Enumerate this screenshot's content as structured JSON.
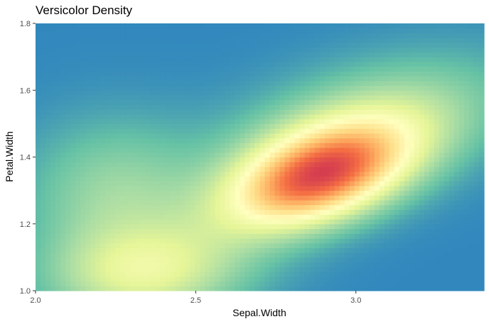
{
  "chart_data": {
    "type": "heatmap",
    "title": "Versicolor Density",
    "xlabel": "Sepal.Width",
    "ylabel": "Petal.Width",
    "xlim": [
      2.0,
      3.4
    ],
    "ylim": [
      1.0,
      1.8
    ],
    "x_ticks": [
      2.0,
      2.5,
      3.0
    ],
    "x_tick_labels": [
      "2.0",
      "2.5",
      "3.0"
    ],
    "y_ticks": [
      1.0,
      1.2,
      1.4,
      1.6,
      1.8
    ],
    "y_tick_labels": [
      "1.0",
      "1.2",
      "1.4",
      "1.6",
      "1.8"
    ],
    "grid": false,
    "legend": "none",
    "palette": [
      "#3288bd",
      "#66c2a5",
      "#abdda4",
      "#e6f598",
      "#ffffbf",
      "#fee08b",
      "#fdae61",
      "#f46d43",
      "#d53e4f"
    ],
    "density_components": [
      {
        "x": 2.88,
        "y": 1.34,
        "sx": 0.2,
        "sy": 0.11,
        "rho": 0.45,
        "weight": 1.0
      },
      {
        "x": 2.35,
        "y": 1.05,
        "sx": 0.22,
        "sy": 0.1,
        "rho": 0.1,
        "weight": 0.4
      },
      {
        "x": 2.25,
        "y": 1.28,
        "sx": 0.2,
        "sy": 0.16,
        "rho": 0.0,
        "weight": 0.26
      },
      {
        "x": 3.05,
        "y": 1.5,
        "sx": 0.3,
        "sy": 0.14,
        "rho": 0.4,
        "weight": 0.32
      }
    ],
    "peak": {
      "x": 2.88,
      "y": 1.34
    }
  }
}
